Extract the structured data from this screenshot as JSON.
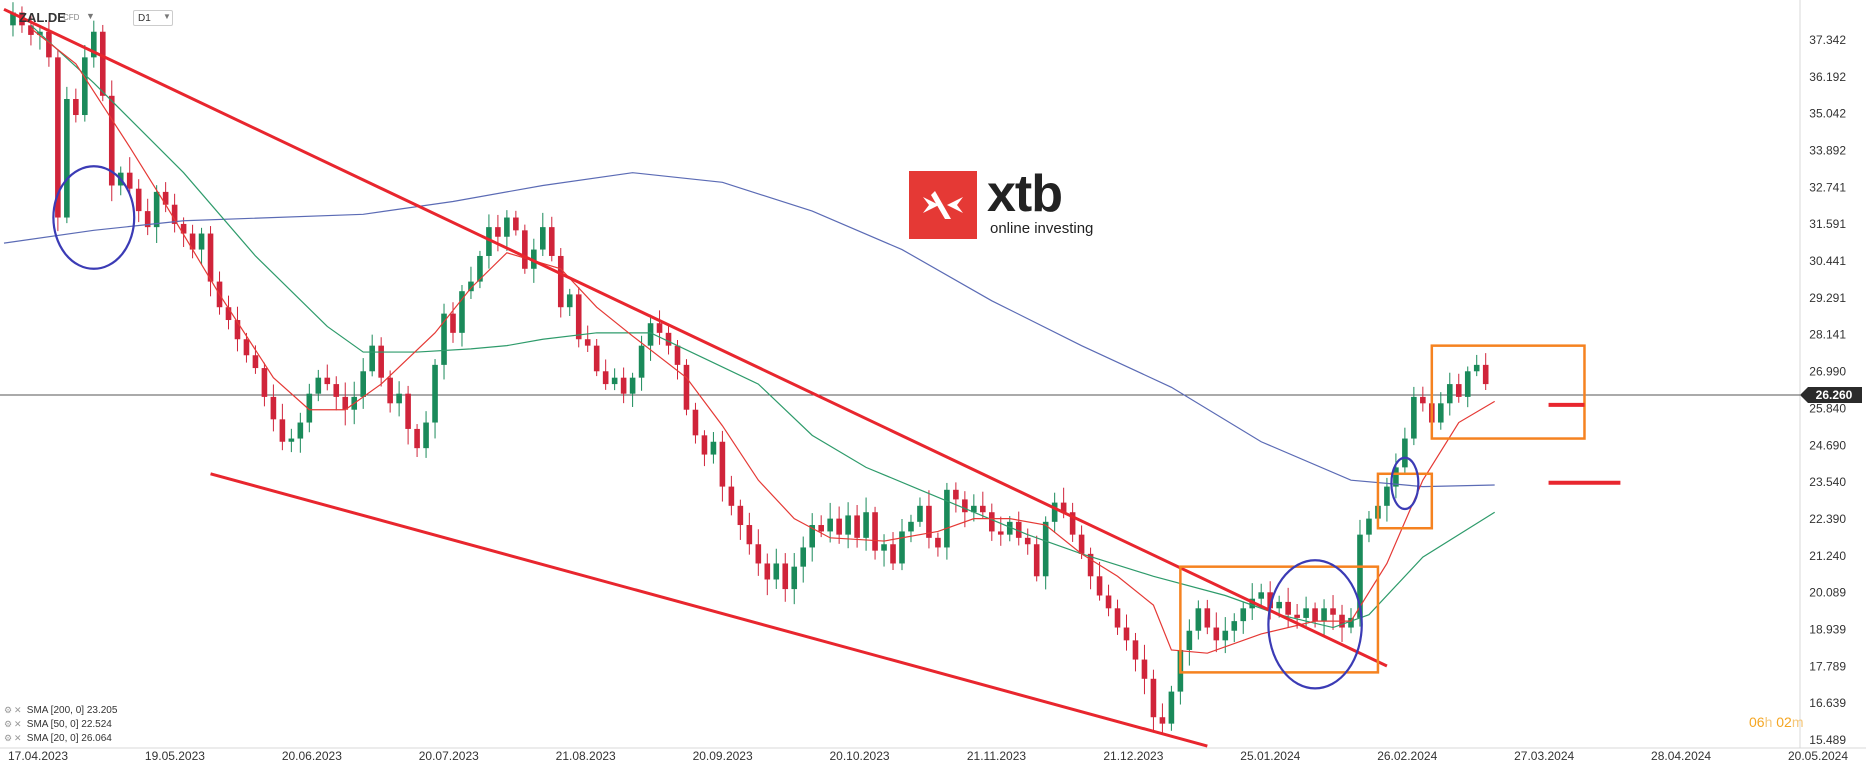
{
  "header": {
    "symbol": "ZAL.DE",
    "instrument_type": "CFD",
    "timeframe": "D1",
    "dropdown_icon": "chevron-down-icon"
  },
  "logo": {
    "brand": "xtb",
    "tagline": "online investing",
    "color": "#e53935"
  },
  "legend": [
    {
      "label": "SMA [200, 0] 23.205",
      "color": "#5b6bb5"
    },
    {
      "label": "SMA [50, 0] 22.524",
      "color": "#2e9b6b"
    },
    {
      "label": "SMA [20, 0] 26.064",
      "color": "#e53935"
    }
  ],
  "timer": {
    "hours": "06",
    "h": "h",
    "minutes": "02",
    "m": "m"
  },
  "chart_data": {
    "type": "candlestick",
    "price_axis_labels": [
      "37.342",
      "36.192",
      "35.042",
      "33.892",
      "32.741",
      "31.591",
      "30.441",
      "29.291",
      "28.141",
      "26.990",
      "25.840",
      "24.690",
      "23.540",
      "22.390",
      "21.240",
      "20.089",
      "18.939",
      "17.789",
      "16.639",
      "15.489"
    ],
    "date_labels": [
      "17.04.2023",
      "19.05.2023",
      "20.06.2023",
      "20.07.2023",
      "21.08.2023",
      "20.09.2023",
      "20.10.2023",
      "21.11.2023",
      "21.12.2023",
      "25.01.2024",
      "26.02.2024",
      "27.03.2024",
      "28.04.2024",
      "20.05.2024"
    ],
    "ylim": [
      15.489,
      37.342
    ],
    "current_price": "26.260",
    "current_price_color": "#2b2b2b",
    "colors": {
      "up": "#1a8a5a",
      "down": "#d0243a",
      "sma200": "#5b6bb5",
      "sma50": "#2e9b6b",
      "sma20": "#e53935",
      "trendline": "#e8262e",
      "box": "#f58220",
      "circle": "#3b3bb5"
    },
    "price_path": [
      [
        0,
        37.8
      ],
      [
        1,
        38.2
      ],
      [
        2,
        37.8
      ],
      [
        3,
        37.5
      ],
      [
        4,
        37.6
      ],
      [
        5,
        36.8
      ],
      [
        6,
        31.8
      ],
      [
        7,
        35.5
      ],
      [
        8,
        35.0
      ],
      [
        9,
        36.8
      ],
      [
        10,
        37.6
      ],
      [
        11,
        35.6
      ],
      [
        12,
        32.8
      ],
      [
        13,
        33.2
      ],
      [
        14,
        32.7
      ],
      [
        15,
        32.0
      ],
      [
        16,
        31.5
      ],
      [
        17,
        32.6
      ],
      [
        18,
        32.2
      ],
      [
        19,
        31.6
      ],
      [
        20,
        31.3
      ],
      [
        21,
        30.8
      ],
      [
        22,
        31.3
      ],
      [
        23,
        29.8
      ],
      [
        24,
        29.0
      ],
      [
        25,
        28.6
      ],
      [
        26,
        28.0
      ],
      [
        27,
        27.5
      ],
      [
        28,
        27.1
      ],
      [
        29,
        26.2
      ],
      [
        30,
        25.5
      ],
      [
        31,
        24.8
      ],
      [
        32,
        24.9
      ],
      [
        33,
        25.4
      ],
      [
        34,
        26.3
      ],
      [
        35,
        26.8
      ],
      [
        36,
        26.6
      ],
      [
        37,
        26.2
      ],
      [
        38,
        25.8
      ],
      [
        39,
        26.2
      ],
      [
        40,
        27.0
      ],
      [
        41,
        27.8
      ],
      [
        42,
        26.8
      ],
      [
        43,
        26.0
      ],
      [
        44,
        26.3
      ],
      [
        45,
        25.2
      ],
      [
        46,
        24.6
      ],
      [
        47,
        25.4
      ],
      [
        48,
        27.2
      ],
      [
        49,
        28.8
      ],
      [
        50,
        28.2
      ],
      [
        51,
        29.5
      ],
      [
        52,
        29.8
      ],
      [
        53,
        30.6
      ],
      [
        54,
        31.5
      ],
      [
        55,
        31.2
      ],
      [
        56,
        31.8
      ],
      [
        57,
        31.4
      ],
      [
        58,
        30.2
      ],
      [
        59,
        30.8
      ],
      [
        60,
        31.5
      ],
      [
        61,
        30.6
      ],
      [
        62,
        29.0
      ],
      [
        63,
        29.4
      ],
      [
        64,
        28.0
      ],
      [
        65,
        27.8
      ],
      [
        66,
        27.0
      ],
      [
        67,
        26.6
      ],
      [
        68,
        26.8
      ],
      [
        69,
        26.3
      ],
      [
        70,
        26.8
      ],
      [
        71,
        27.8
      ],
      [
        72,
        28.5
      ],
      [
        73,
        28.2
      ],
      [
        74,
        27.8
      ],
      [
        75,
        27.2
      ],
      [
        76,
        25.8
      ],
      [
        77,
        25.0
      ],
      [
        78,
        24.4
      ],
      [
        79,
        24.8
      ],
      [
        80,
        23.4
      ],
      [
        81,
        22.8
      ],
      [
        82,
        22.2
      ],
      [
        83,
        21.6
      ],
      [
        84,
        21.0
      ],
      [
        85,
        20.5
      ],
      [
        86,
        21.0
      ],
      [
        87,
        20.2
      ],
      [
        88,
        20.9
      ],
      [
        89,
        21.5
      ],
      [
        90,
        22.2
      ],
      [
        91,
        22.0
      ],
      [
        92,
        22.4
      ],
      [
        93,
        21.9
      ],
      [
        94,
        22.5
      ],
      [
        95,
        21.8
      ],
      [
        96,
        22.6
      ],
      [
        97,
        21.4
      ],
      [
        98,
        21.6
      ],
      [
        99,
        21.0
      ],
      [
        100,
        22.0
      ],
      [
        101,
        22.3
      ],
      [
        102,
        22.8
      ],
      [
        103,
        21.8
      ],
      [
        104,
        21.5
      ],
      [
        105,
        23.3
      ],
      [
        106,
        23.0
      ],
      [
        107,
        22.6
      ],
      [
        108,
        22.8
      ],
      [
        109,
        22.6
      ],
      [
        110,
        22.0
      ],
      [
        111,
        21.9
      ],
      [
        112,
        22.3
      ],
      [
        113,
        21.8
      ],
      [
        114,
        21.6
      ],
      [
        115,
        20.6
      ],
      [
        116,
        22.3
      ],
      [
        117,
        22.9
      ],
      [
        118,
        22.6
      ],
      [
        119,
        21.9
      ],
      [
        120,
        21.3
      ],
      [
        121,
        20.6
      ],
      [
        122,
        20.0
      ],
      [
        123,
        19.6
      ],
      [
        124,
        19.0
      ],
      [
        125,
        18.6
      ],
      [
        126,
        18.0
      ],
      [
        127,
        17.4
      ],
      [
        128,
        16.2
      ],
      [
        129,
        16.0
      ],
      [
        130,
        17.0
      ],
      [
        131,
        18.3
      ],
      [
        132,
        18.9
      ],
      [
        133,
        19.6
      ],
      [
        134,
        19.0
      ],
      [
        135,
        18.6
      ],
      [
        136,
        18.9
      ],
      [
        137,
        19.2
      ],
      [
        138,
        19.6
      ],
      [
        139,
        19.9
      ],
      [
        140,
        20.1
      ],
      [
        141,
        19.6
      ],
      [
        142,
        19.8
      ],
      [
        143,
        19.4
      ],
      [
        144,
        19.3
      ],
      [
        145,
        19.6
      ],
      [
        146,
        19.2
      ],
      [
        147,
        19.6
      ],
      [
        148,
        19.4
      ],
      [
        149,
        19.0
      ],
      [
        150,
        19.3
      ],
      [
        151,
        21.9
      ],
      [
        152,
        22.4
      ],
      [
        153,
        22.8
      ],
      [
        154,
        23.4
      ],
      [
        155,
        24.0
      ],
      [
        156,
        24.9
      ],
      [
        157,
        26.2
      ],
      [
        158,
        26.0
      ],
      [
        159,
        25.4
      ],
      [
        160,
        26.0
      ],
      [
        161,
        26.6
      ],
      [
        162,
        26.2
      ],
      [
        163,
        27.0
      ],
      [
        164,
        27.2
      ],
      [
        165,
        26.6
      ]
    ],
    "sma200": [
      [
        0,
        31.0
      ],
      [
        10,
        31.4
      ],
      [
        20,
        31.7
      ],
      [
        40,
        31.9
      ],
      [
        50,
        32.3
      ],
      [
        60,
        32.8
      ],
      [
        70,
        33.2
      ],
      [
        80,
        32.9
      ],
      [
        90,
        32.0
      ],
      [
        100,
        30.8
      ],
      [
        110,
        29.2
      ],
      [
        120,
        27.8
      ],
      [
        130,
        26.5
      ],
      [
        140,
        24.8
      ],
      [
        150,
        23.6
      ],
      [
        158,
        23.4
      ],
      [
        166,
        23.45
      ]
    ],
    "sma50": [
      [
        3,
        37.8
      ],
      [
        10,
        36.0
      ],
      [
        15,
        34.6
      ],
      [
        20,
        33.2
      ],
      [
        28,
        30.6
      ],
      [
        36,
        28.4
      ],
      [
        40,
        27.6
      ],
      [
        46,
        27.6
      ],
      [
        52,
        27.7
      ],
      [
        56,
        27.8
      ],
      [
        60,
        28.0
      ],
      [
        66,
        28.2
      ],
      [
        72,
        28.2
      ],
      [
        78,
        27.4
      ],
      [
        84,
        26.6
      ],
      [
        90,
        25.0
      ],
      [
        96,
        24.0
      ],
      [
        102,
        23.3
      ],
      [
        108,
        22.6
      ],
      [
        114,
        21.9
      ],
      [
        120,
        21.3
      ],
      [
        128,
        20.6
      ],
      [
        136,
        20.0
      ],
      [
        142,
        19.4
      ],
      [
        148,
        19.0
      ],
      [
        152,
        19.4
      ],
      [
        158,
        21.2
      ],
      [
        166,
        22.6
      ]
    ],
    "sma20": [
      [
        3,
        37.7
      ],
      [
        8,
        36.6
      ],
      [
        14,
        34.0
      ],
      [
        18,
        32.2
      ],
      [
        24,
        29.4
      ],
      [
        30,
        26.8
      ],
      [
        34,
        25.8
      ],
      [
        38,
        25.8
      ],
      [
        42,
        26.6
      ],
      [
        48,
        28.2
      ],
      [
        52,
        29.6
      ],
      [
        56,
        30.7
      ],
      [
        62,
        30.2
      ],
      [
        66,
        29.0
      ],
      [
        70,
        28.1
      ],
      [
        76,
        26.8
      ],
      [
        80,
        25.3
      ],
      [
        84,
        23.6
      ],
      [
        88,
        22.4
      ],
      [
        92,
        21.8
      ],
      [
        98,
        21.7
      ],
      [
        104,
        22.0
      ],
      [
        108,
        22.4
      ],
      [
        112,
        22.4
      ],
      [
        116,
        22.2
      ],
      [
        120,
        21.3
      ],
      [
        124,
        20.6
      ],
      [
        128,
        19.7
      ],
      [
        130,
        18.3
      ],
      [
        134,
        18.2
      ],
      [
        140,
        18.8
      ],
      [
        146,
        19.2
      ],
      [
        150,
        19.2
      ],
      [
        154,
        21.0
      ],
      [
        158,
        23.6
      ],
      [
        162,
        25.4
      ],
      [
        166,
        26.06
      ]
    ],
    "annotations": {
      "descending_channel_upper": [
        [
          0,
          38.3
        ],
        [
          154,
          17.8
        ]
      ],
      "descending_channel_lower": [
        [
          23,
          23.8
        ],
        [
          134,
          15.3
        ]
      ],
      "boxes": [
        {
          "x": [
            131,
            153
          ],
          "y": [
            17.6,
            20.9
          ]
        },
        {
          "x": [
            153,
            159
          ],
          "y": [
            22.1,
            23.8
          ]
        },
        {
          "x": [
            159,
            176
          ],
          "y": [
            24.9,
            27.8
          ]
        }
      ],
      "circles": [
        {
          "cx": 10,
          "cy": 31.8,
          "rx": 4.5,
          "ry": 1.6
        },
        {
          "cx": 146,
          "cy": 19.1,
          "rx": 5.2,
          "ry": 2.0
        },
        {
          "cx": 156,
          "cy": 23.5,
          "rx": 1.5,
          "ry": 0.8
        }
      ],
      "level_segments": [
        {
          "x": [
            172,
            176
          ],
          "y": 25.95
        },
        {
          "x": [
            172,
            180
          ],
          "y": 23.52
        }
      ]
    }
  }
}
